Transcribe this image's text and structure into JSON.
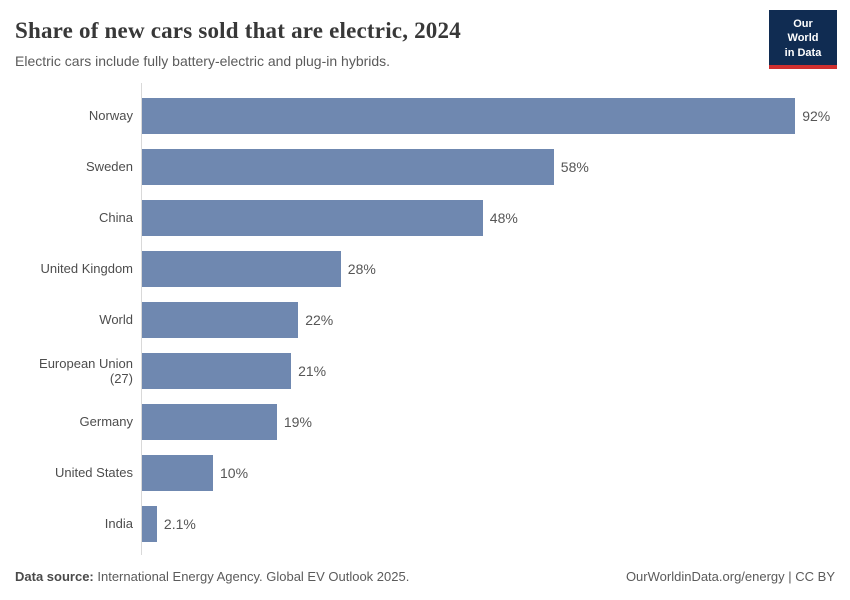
{
  "header": {
    "title": "Share of new cars sold that are electric, 2024",
    "subtitle": "Electric cars include fully battery-electric and plug-in hybrids.",
    "logo": {
      "line1": "Our World",
      "line2": "in Data"
    }
  },
  "chart_data": {
    "type": "bar",
    "orientation": "horizontal",
    "title": "Share of new cars sold that are electric, 2024",
    "categories": [
      "Norway",
      "Sweden",
      "China",
      "United Kingdom",
      "World",
      "European Union (27)",
      "Germany",
      "United States",
      "India"
    ],
    "values": [
      92,
      58,
      48,
      28,
      22,
      21,
      19,
      10,
      2.1
    ],
    "value_labels": [
      "92%",
      "58%",
      "48%",
      "28%",
      "22%",
      "21%",
      "19%",
      "10%",
      "2.1%"
    ],
    "unit": "%",
    "xlabel": "",
    "ylabel": "",
    "xlim": [
      0,
      100
    ],
    "grid": false,
    "legend": false,
    "bar_color": "#6f88b0"
  },
  "footer": {
    "source_label": "Data source:",
    "source_text": " International Energy Agency. Global EV Outlook 2025.",
    "credit": "OurWorldinData.org/energy | CC BY"
  },
  "colors": {
    "bar": "#6f88b0",
    "logo_bg": "#102c52",
    "logo_accent": "#cf2f2f",
    "axis": "#d9d9d9"
  }
}
